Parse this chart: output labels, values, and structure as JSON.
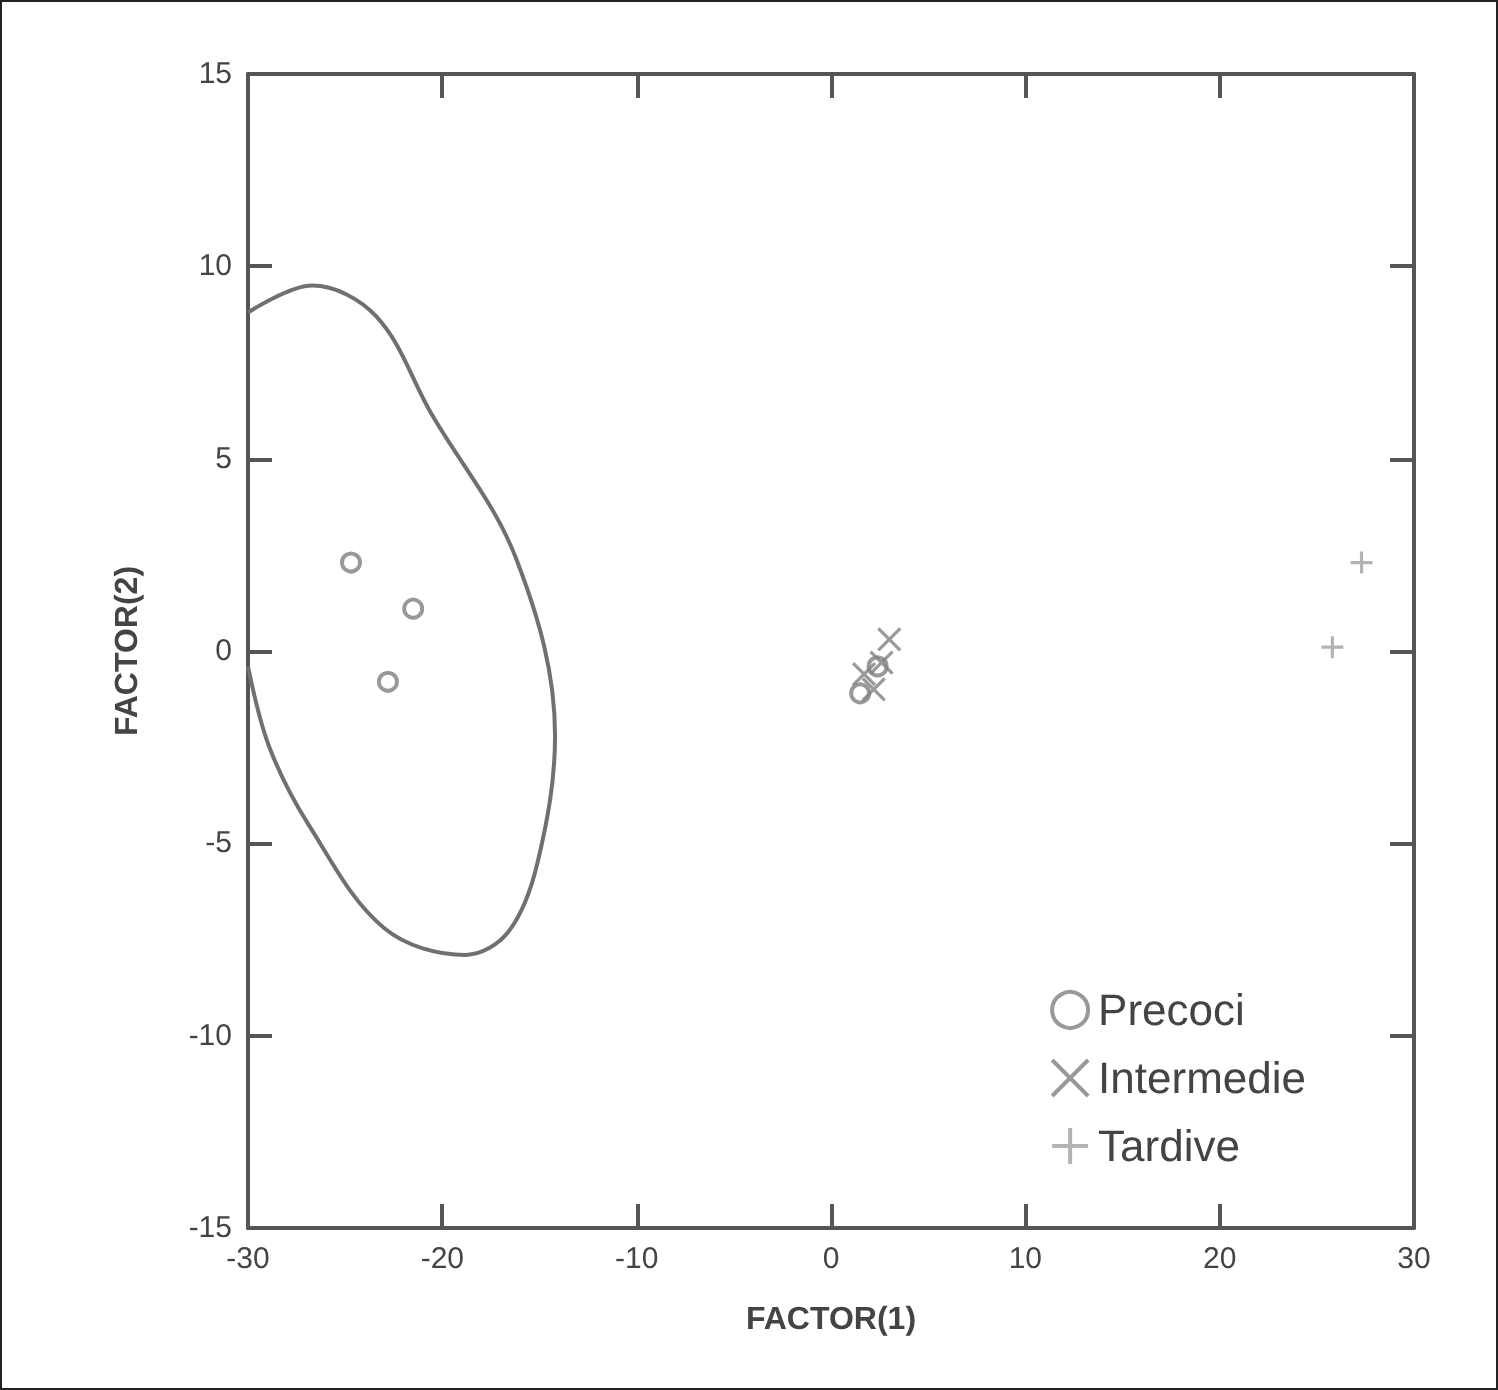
{
  "chart_data": {
    "type": "scatter",
    "xlabel": "FACTOR(1)",
    "ylabel": "FACTOR(2)",
    "xlim": [
      -30,
      30
    ],
    "xticks": [
      -30,
      -20,
      -10,
      0,
      10,
      20,
      30
    ],
    "ylim": [
      -15,
      15
    ],
    "yticks": [
      -15,
      -10,
      -5,
      0,
      5,
      10,
      15
    ],
    "grid": false,
    "legend": "bottom right",
    "series": [
      {
        "name": "Precoci",
        "color": "#808080",
        "marker": "circle",
        "x": [
          -24.7,
          -21.5,
          -22.8,
          1.5,
          2.4
        ],
        "values": [
          2.3,
          1.1,
          -0.8,
          -1.1,
          -0.4
        ]
      },
      {
        "name": "Intermedie",
        "color": "#808080",
        "marker": "cross",
        "x": [
          1.7,
          2.2,
          2.6,
          3.0
        ],
        "values": [
          -0.6,
          -1.0,
          -0.3,
          0.3
        ]
      },
      {
        "name": "Tardive",
        "color": "#a0a0a0",
        "marker": "plus",
        "x": [
          25.8,
          27.3
        ],
        "values": [
          0.1,
          2.3
        ]
      },
      {
        "type": "line",
        "color": "#707070",
        "marker": "none",
        "x": [
          -30,
          -26.7,
          -23.4,
          -20.6,
          -16.2,
          -14.2,
          -15.1,
          -16.6,
          -18.8,
          -23,
          -26.9,
          -28.9,
          -30
        ],
        "values": [
          8.8,
          9.5,
          8.7,
          6.2,
          2.4,
          -2.2,
          -5.5,
          -7.3,
          -7.9,
          -7.2,
          -4.5,
          -2.5,
          -0.4
        ]
      }
    ]
  }
}
